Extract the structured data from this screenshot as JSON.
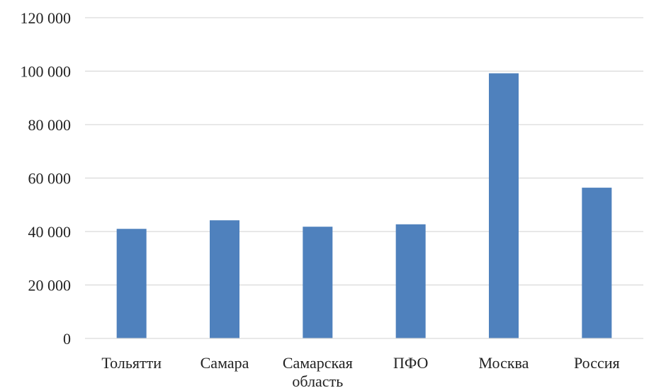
{
  "chart_data": {
    "type": "bar",
    "categories": [
      [
        "Тольятти"
      ],
      [
        "Самара"
      ],
      [
        "Самарская",
        "область"
      ],
      [
        "ПФО"
      ],
      [
        "Москва"
      ],
      [
        "Россия"
      ]
    ],
    "series": [
      {
        "values": [
          41000,
          44200,
          41800,
          42700,
          99200,
          56400
        ]
      }
    ],
    "ylim": [
      0,
      120000
    ],
    "yticks": [
      0,
      20000,
      40000,
      60000,
      80000,
      100000,
      120000
    ],
    "ytick_labels": [
      "0",
      "20 000",
      "40 000",
      "60 000",
      "80 000",
      "100 000",
      "120 000"
    ],
    "title": "",
    "xlabel": "",
    "ylabel": "",
    "grid": "horizontal",
    "legend": "none",
    "colors": {
      "bar": "#4f81bd",
      "grid": "#d9d9d9",
      "axis": "#d9d9d9"
    }
  }
}
